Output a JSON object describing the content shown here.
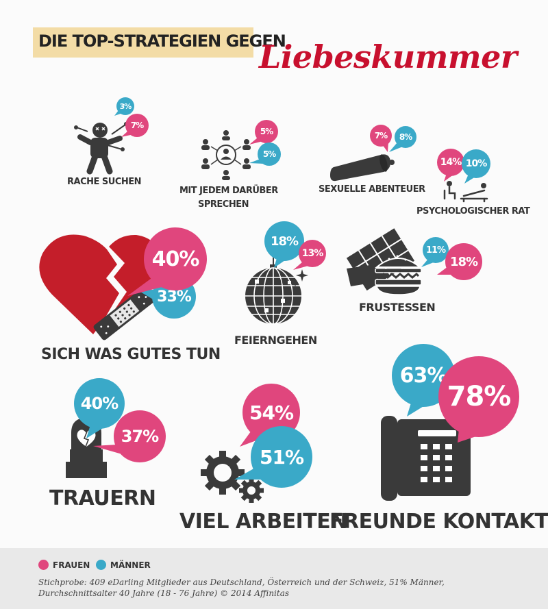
{
  "title": {
    "line1": "DIE TOP-STRATEGIEN GEGEN",
    "line2": "Liebeskummer"
  },
  "colors": {
    "frauen": "#e0467d",
    "maenner": "#3aa9c8",
    "title_red": "#c8102e",
    "title_highlight": "#f3dca6",
    "icon": "#3a3a3a"
  },
  "strategies": [
    {
      "label": "RACHE SUCHEN",
      "frauen": "7%",
      "maenner": "3%",
      "icon": "voodoo-doll-icon"
    },
    {
      "label1": "MIT JEDEM DARÜBER",
      "label2": "SPRECHEN",
      "frauen": "5%",
      "maenner": "5%",
      "icon": "people-network-icon"
    },
    {
      "label": "SEXUELLE ABENTEUER",
      "frauen": "7%",
      "maenner": "8%",
      "icon": "condom-icon"
    },
    {
      "label": "PSYCHOLOGISCHER RAT",
      "frauen": "14%",
      "maenner": "10%",
      "icon": "therapy-couch-icon"
    },
    {
      "label": "SICH WAS GUTES TUN",
      "frauen": "40%",
      "maenner": "33%",
      "icon": "broken-heart-bandage-icon"
    },
    {
      "label": "FEIERNGEHEN",
      "frauen": "13%",
      "maenner": "18%",
      "icon": "disco-ball-icon"
    },
    {
      "label": "FRUSTESSEN",
      "frauen": "18%",
      "maenner": "11%",
      "icon": "chocolate-burger-icon"
    },
    {
      "label": "TRAUERN",
      "frauen": "37%",
      "maenner": "40%",
      "icon": "grave-icon"
    },
    {
      "label": "VIEL ARBEITEN",
      "frauen": "54%",
      "maenner": "51%",
      "icon": "gears-icon"
    },
    {
      "label": "FREUNDE KONTAKTIEREN",
      "frauen": "78%",
      "maenner": "63%",
      "icon": "telephone-icon"
    }
  ],
  "legend": {
    "frauen": "FRAUEN",
    "maenner": "MÄNNER"
  },
  "footnote": {
    "line1": "Stichprobe: 409 eDarling Mitglieder aus Deutschland, Österreich und der Schweiz, 51% Männer,",
    "line2": "Durchschnittsalter 40 Jahre (18 - 76 Jahre)   © 2014 Affinitas"
  }
}
